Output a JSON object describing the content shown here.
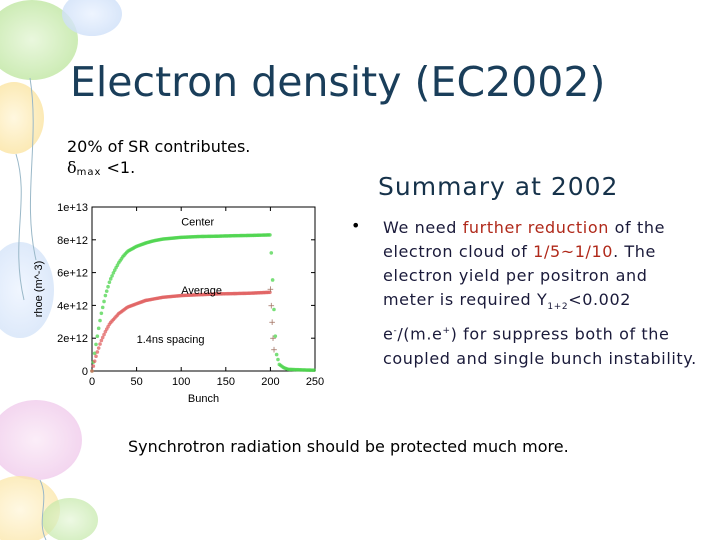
{
  "slide": {
    "title": "Electron density (EC2002)",
    "note_line1": "20% of SR contributes.",
    "note_delta": "δ",
    "note_sub": "max",
    "note_rest": " <1.",
    "summary_title": "Summary at 2002",
    "bullet_symbol": "•",
    "bullet": {
      "p1": "We need ",
      "p2": "further reduction",
      "p3": " of the electron cloud of ",
      "p4": "1/5~1/10",
      "p5": ". The electron yield per positron and meter is required Y",
      "p5_sub": "1+2",
      "p6": "<0.002 e",
      "p6_sup": "-",
      "p7": "/(m.e",
      "p7_sup": "+",
      "p8": ") for suppress both of the coupled and single bunch instability."
    },
    "footer": "Synchrotron radiation should be protected much more.",
    "colors": {
      "title": "#1a3e5a",
      "highlight": "#b0291a",
      "center_series": "#4cd44c",
      "average_series": "#e06060",
      "tail_series": "#a07060"
    }
  },
  "chart_data": {
    "type": "scatter",
    "xlabel": "Bunch",
    "ylabel": "rhoe (m^-3)",
    "xlim": [
      0,
      250
    ],
    "ylim": [
      0,
      10000000000000.0
    ],
    "x_ticks": [
      0,
      50,
      100,
      150,
      200,
      250
    ],
    "y_ticks": [
      0,
      2000000000000.0,
      4000000000000.0,
      6000000000000.0,
      8000000000000.0,
      10000000000000.0
    ],
    "x_tick_labels": [
      "0",
      "50",
      "100",
      "150",
      "200",
      "250"
    ],
    "y_tick_labels": [
      "0",
      "2e+12",
      "4e+12",
      "6e+12",
      "8e+12",
      "1e+13"
    ],
    "annotation": "1.4ns spacing",
    "series": [
      {
        "name": "Center",
        "color": "#4cd44c",
        "x": [
          0,
          5,
          10,
          15,
          20,
          25,
          30,
          35,
          40,
          50,
          60,
          70,
          80,
          90,
          100,
          120,
          140,
          160,
          180,
          200,
          203,
          205,
          207,
          210,
          215,
          220,
          230,
          240,
          250
        ],
        "y": [
          0,
          1800000000000.0,
          3400000000000.0,
          4600000000000.0,
          5500000000000.0,
          6100000000000.0,
          6600000000000.0,
          7000000000000.0,
          7300000000000.0,
          7600000000000.0,
          7800000000000.0,
          7950000000000.0,
          8050000000000.0,
          8100000000000.0,
          8150000000000.0,
          8200000000000.0,
          8220000000000.0,
          8250000000000.0,
          8270000000000.0,
          8300000000000.0,
          5000000000000.0,
          2500000000000.0,
          1000000000000.0,
          400000000000.0,
          200000000000.0,
          100000000000.0,
          80000000000.0,
          60000000000.0,
          50000000000.0
        ]
      },
      {
        "name": "Average",
        "color": "#e06060",
        "x": [
          0,
          5,
          10,
          15,
          20,
          25,
          30,
          35,
          40,
          50,
          60,
          70,
          80,
          90,
          100,
          120,
          140,
          160,
          180,
          200
        ],
        "y": [
          0,
          1000000000000.0,
          1800000000000.0,
          2400000000000.0,
          2900000000000.0,
          3200000000000.0,
          3500000000000.0,
          3700000000000.0,
          3900000000000.0,
          4100000000000.0,
          4300000000000.0,
          4400000000000.0,
          4500000000000.0,
          4550000000000.0,
          4600000000000.0,
          4650000000000.0,
          4700000000000.0,
          4720000000000.0,
          4750000000000.0,
          4800000000000.0
        ]
      },
      {
        "color": "#a07060",
        "x": [
          200,
          201,
          202,
          203,
          204
        ],
        "y": [
          5000000000000.0,
          4000000000000.0,
          3000000000000.0,
          2000000000000.0,
          1300000000000.0
        ]
      }
    ]
  }
}
